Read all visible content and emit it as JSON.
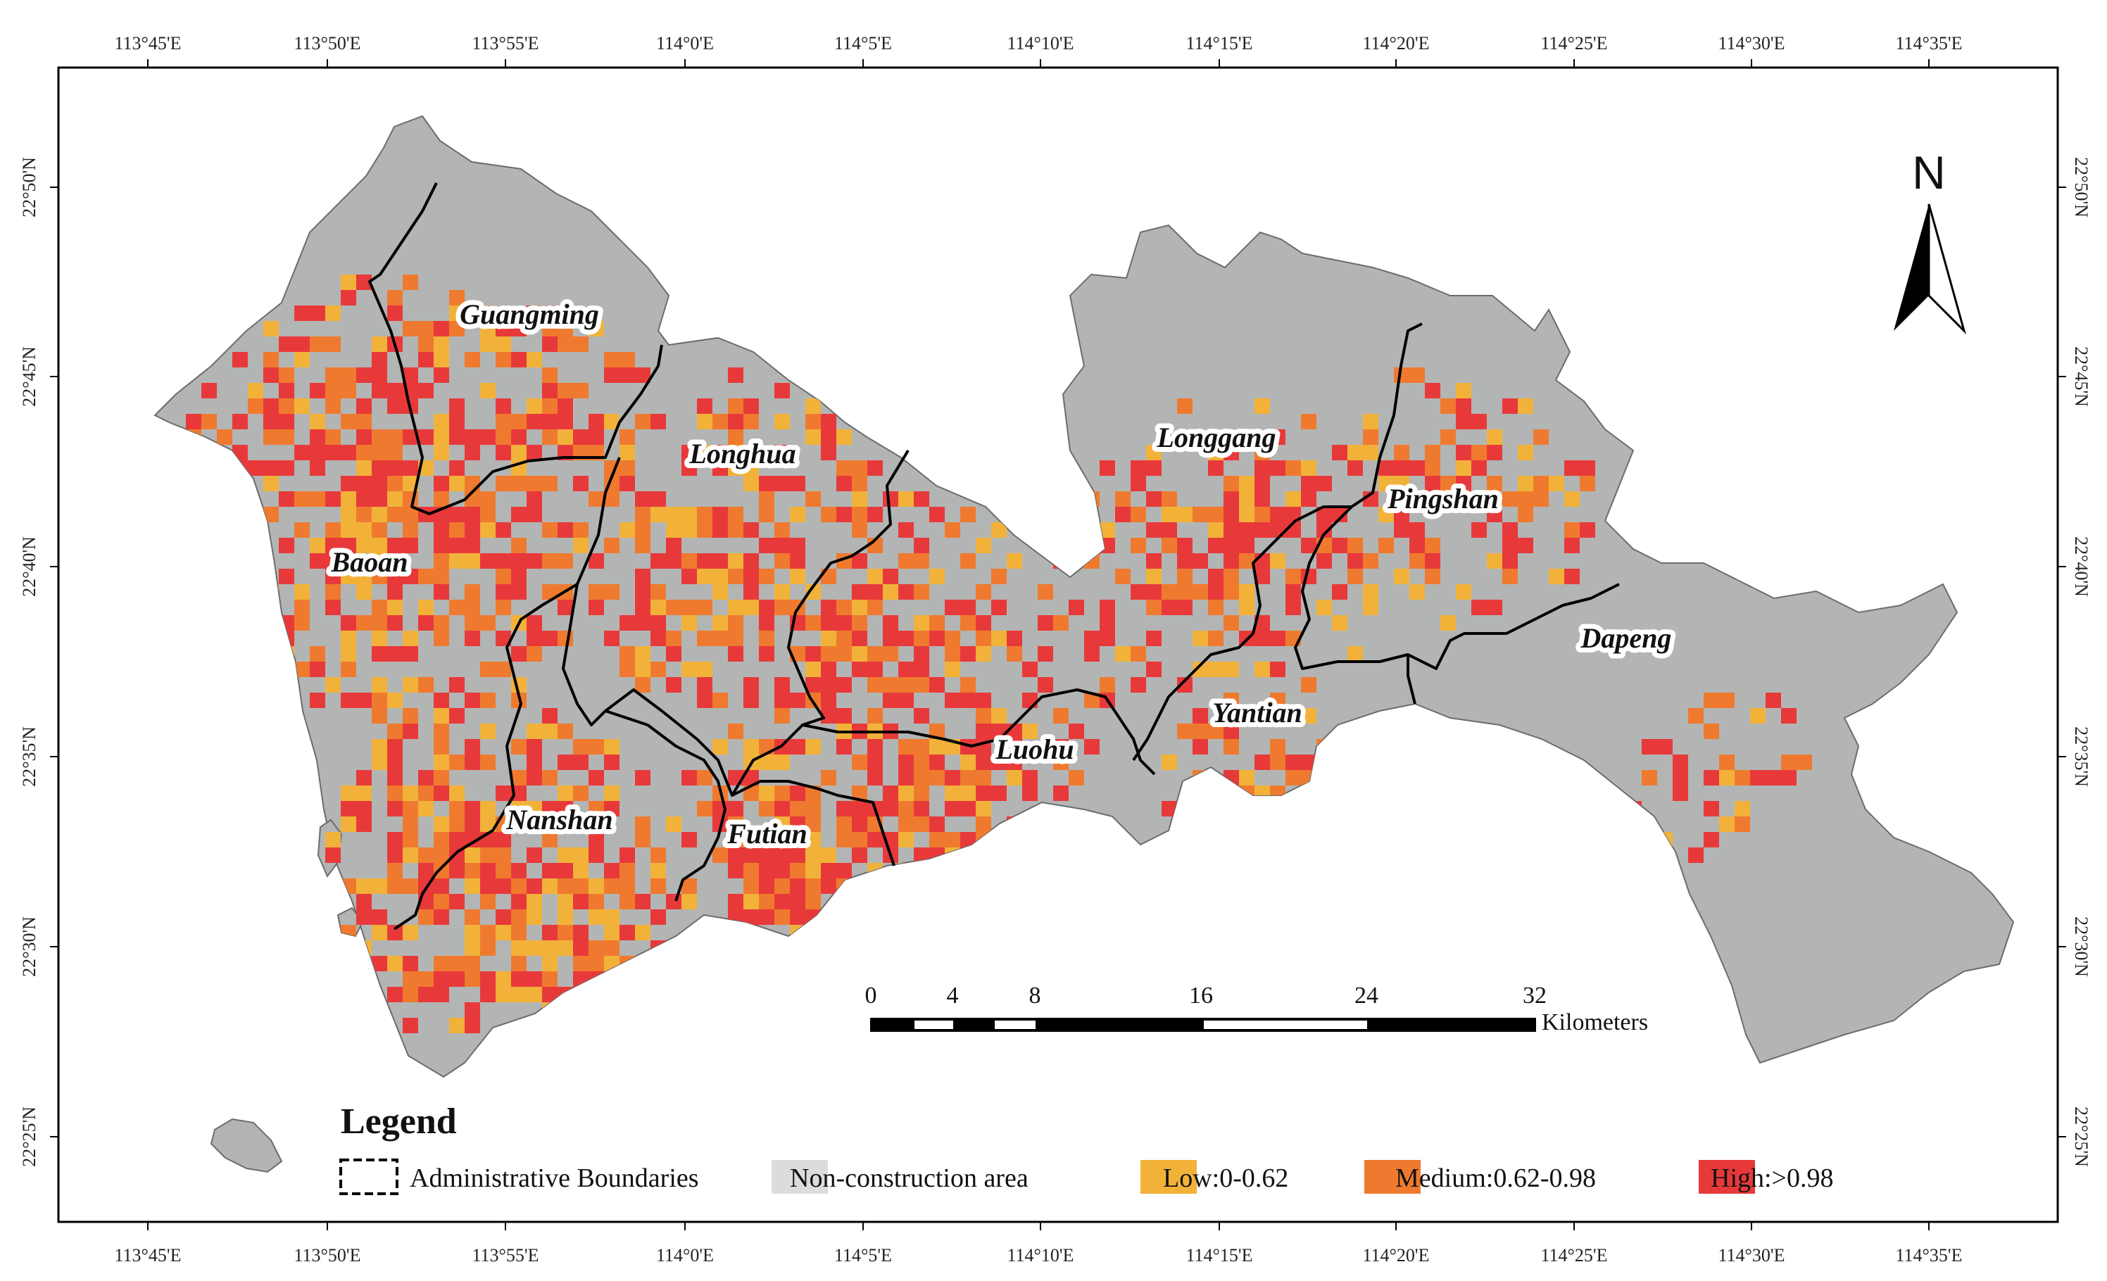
{
  "map": {
    "lon_ticks": [
      "113°45'E",
      "113°50'E",
      "113°55'E",
      "114°0'E",
      "114°5'E",
      "114°10'E",
      "114°15'E",
      "114°20'E",
      "114°25'E",
      "114°30'E",
      "114°35'E"
    ],
    "lat_ticks": [
      "22°50'N",
      "22°45'N",
      "22°40'N",
      "22°35'N",
      "22°30'N",
      "22°25'N"
    ],
    "districts": [
      "Guangming",
      "Longhua",
      "Longgang",
      "Pingshan",
      "Baoan",
      "Dapeng",
      "Yantian",
      "Luohu",
      "Nanshan",
      "Futian"
    ],
    "north_label": "N",
    "scale_bar": {
      "ticks": [
        "0",
        "4",
        "8",
        "16",
        "24",
        "32"
      ],
      "unit": "Kilometers"
    },
    "legend": {
      "title": "Legend",
      "items": [
        {
          "label": "Administrative Boundaries",
          "color": "#000000",
          "style": "dashed-box"
        },
        {
          "label": "Non-construction area",
          "color": "#dcdcdc",
          "style": "fill"
        },
        {
          "label": "Low:0-0.62",
          "color": "#f2b23a",
          "style": "fill"
        },
        {
          "label": "Medium:0.62-0.98",
          "color": "#ef7a2f",
          "style": "fill"
        },
        {
          "label": "High:>0.98",
          "color": "#e8393a",
          "style": "fill"
        }
      ]
    },
    "colors": {
      "land": "#b3b5b4",
      "low": "#f2b23a",
      "medium": "#ef7a2f",
      "high": "#e8393a",
      "boundary": "#000000"
    }
  }
}
